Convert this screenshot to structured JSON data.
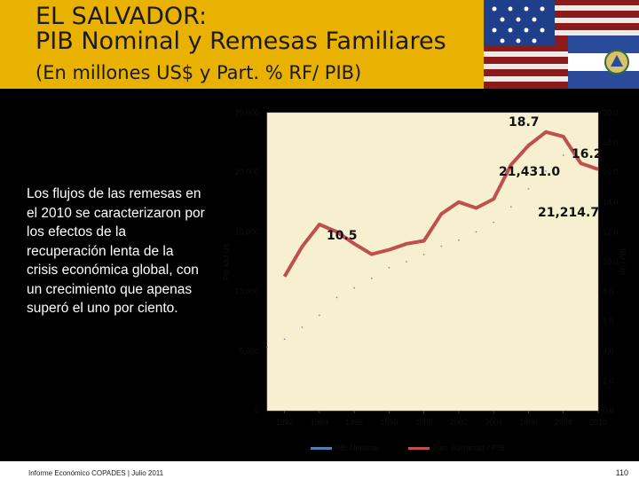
{
  "header": {
    "title_line1": "EL SALVADOR:",
    "title_line2": "PIB Nominal y Remesas Familiares",
    "subtitle": "(En millones US$ y Part. % RF/ PIB)"
  },
  "side_note": "Los flujos de las remesas en el 2010 se caracterizaron por los efectos de la recuperación lenta de la crisis económica global, con un crecimiento que apenas superó el uno por ciento.",
  "footer": {
    "source": "Informe Económico COPADES | Julio 2011",
    "page": "110"
  },
  "colors": {
    "title_bg": "#e9b100",
    "plot_bg": "#f6f0d0",
    "pib_series": "#4f81bd",
    "remesas_series": "#c0504d"
  },
  "chart_data": {
    "type": "line",
    "x": [
      1991,
      1992,
      1993,
      1994,
      1995,
      1996,
      1997,
      1998,
      1999,
      2000,
      2001,
      2002,
      2003,
      2004,
      2005,
      2006,
      2007,
      2008,
      2009,
      2010
    ],
    "xticks": [
      "1992",
      "1994",
      "1996",
      "1998",
      "2000",
      "2002",
      "2004",
      "2006",
      "2008",
      "2010"
    ],
    "xlim": [
      1991,
      2010
    ],
    "ylabel_left": "PIB MM US",
    "ylabel_right": "RF / PIB",
    "ylim_left": [
      0,
      25000
    ],
    "ylim_right": [
      0,
      20
    ],
    "yticks_left": [
      "0",
      "5,000",
      "10,000",
      "15,000",
      "20,000",
      "25,000"
    ],
    "yticks_right": [
      "0.0",
      "2.0",
      "4.0",
      "6.0",
      "8.0",
      "10.0",
      "12.0",
      "14.0",
      "16.0",
      "18.0",
      "20.0"
    ],
    "series": [
      {
        "name": "PIB Nominal",
        "axis": "left",
        "values": [
          5300,
          6000,
          7000,
          8000,
          9500,
          10300,
          11100,
          12000,
          12500,
          13100,
          13800,
          14300,
          15000,
          15800,
          17100,
          18600,
          20100,
          21431,
          20661,
          21214.7
        ]
      },
      {
        "name": "Part. Remesas / PIB",
        "axis": "right",
        "values": [
          null,
          9.0,
          11.0,
          12.5,
          12.0,
          11.2,
          10.5,
          10.8,
          11.2,
          11.4,
          13.2,
          14.0,
          13.6,
          14.2,
          16.5,
          17.8,
          18.7,
          18.4,
          16.6,
          16.2
        ]
      }
    ],
    "annotations": [
      "18.7",
      "16.2",
      "21,431.0",
      "21,214.7",
      "10.5"
    ]
  }
}
